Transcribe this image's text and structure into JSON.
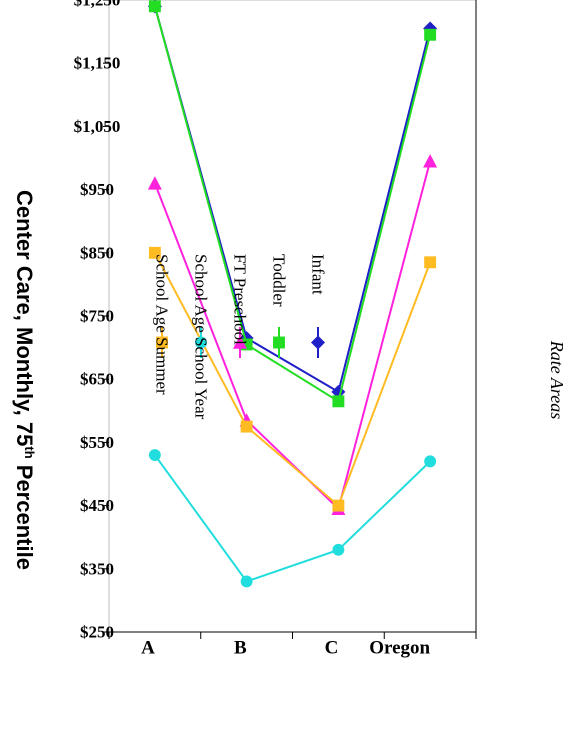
{
  "chart_data": {
    "type": "line",
    "title": "Center Care, Monthly, 75",
    "title_sup": "th",
    "title_tail": " Percentile",
    "xlabel": "Rate Areas",
    "ylabel": "",
    "categories": [
      "A",
      "B",
      "C",
      "Oregon"
    ],
    "y_ticks": [
      "$1,250",
      "$1,150",
      "$1,050",
      "$950",
      "$850",
      "$750",
      "$650",
      "$550",
      "$450",
      "$350",
      "$250"
    ],
    "ylim": [
      250,
      1250
    ],
    "grid": false,
    "legend_position": "top",
    "series": [
      {
        "name": "Infant",
        "color": "#1f1fc8",
        "marker": "diamond",
        "values": [
          1240,
          715,
          630,
          1205
        ]
      },
      {
        "name": "Toddler",
        "color": "#22dd22",
        "marker": "square",
        "values": [
          1240,
          705,
          615,
          1195
        ]
      },
      {
        "name": "FT Preschool",
        "color": "#ff22dd",
        "marker": "triangle",
        "values": [
          960,
          585,
          445,
          995
        ]
      },
      {
        "name": "School Age School Year",
        "color": "#22dddd",
        "marker": "circle",
        "values": [
          530,
          330,
          380,
          520
        ]
      },
      {
        "name": "School Age Summer",
        "color": "#ffbb22",
        "marker": "square",
        "values": [
          850,
          575,
          450,
          835
        ]
      }
    ]
  }
}
